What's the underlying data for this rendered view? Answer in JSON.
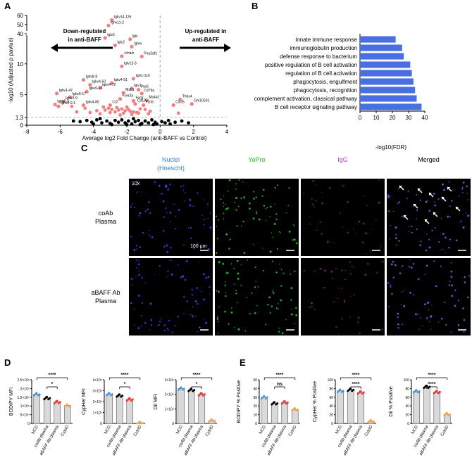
{
  "panels": {
    "a": "A",
    "b": "B",
    "c": "C",
    "d": "D",
    "e": "E"
  },
  "colors": {
    "sig": "#f08080",
    "nonsig": "#000000",
    "bar_b": "#4a6fe3",
    "dashed": "#8ec5e6",
    "ncd": "#4a90d9",
    "coab": "#000000",
    "abaff": "#e83b3b",
    "cytod": "#f5a14a",
    "bar_fill": "#d9d9d9"
  },
  "chart_data": [
    {
      "type": "scatter",
      "panel": "A",
      "xlabel": "Average log2 Fold Change (anti-BAFF vs Control)",
      "ylabel": "-log10 (Adjusted p pavlue)",
      "xlim": [
        -8,
        4
      ],
      "xticks": [
        "-8",
        "-6",
        "-4",
        "-2",
        "0",
        "2",
        "4"
      ],
      "yticks": [
        "0",
        "1.3",
        "5",
        "10",
        "40",
        "50",
        "60"
      ],
      "threshold_label": "1.3",
      "annotations": {
        "down": [
          "Down-regulated",
          "in anti-BAFF"
        ],
        "up": [
          "Up-regulated in",
          "anti-BAFF"
        ]
      },
      "labeled_genes": [
        {
          "name": "Igkv14-126",
          "x": -2.9,
          "y": 55
        },
        {
          "name": "Ighv11-2",
          "x": -3.1,
          "y": 49
        },
        {
          "name": "Jchain",
          "x": -2.3,
          "y": 15.5
        },
        {
          "name": "Iglv2",
          "x": -3.3,
          "y": 14.2
        },
        {
          "name": "Iglc",
          "x": -1.8,
          "y": 14.0
        },
        {
          "name": "Iglc2",
          "x": -2.7,
          "y": 13.0
        },
        {
          "name": "Ighm",
          "x": -1.7,
          "y": 12.8
        },
        {
          "name": "Pou2af1",
          "x": -1.1,
          "y": 11.2
        },
        {
          "name": "Iglv12-3",
          "x": -2.3,
          "y": 9.6
        },
        {
          "name": "Ighv8-8",
          "x": -4.6,
          "y": 7.4
        },
        {
          "name": "Iglv1-110",
          "x": -1.6,
          "y": 7.6
        },
        {
          "name": "Igkv4-50",
          "x": -4.2,
          "y": 6.6
        },
        {
          "name": "Igkv4-91",
          "x": -2.9,
          "y": 6.9
        },
        {
          "name": "Igkv4-72",
          "x": -3.6,
          "y": 6.1
        },
        {
          "name": "Iglv1",
          "x": -1.7,
          "y": 6.0
        },
        {
          "name": "Ighv1-47",
          "x": -6.2,
          "y": 5.2
        },
        {
          "name": "Igkv6-23",
          "x": -4.4,
          "y": 5.5
        },
        {
          "name": "Mzb1",
          "x": -2.2,
          "y": 5.3
        },
        {
          "name": "Pax5",
          "x": -1.3,
          "y": 5.8
        },
        {
          "name": "Cd79a",
          "x": -1.1,
          "y": 5.2
        },
        {
          "name": "Ighv5-17",
          "x": -5.4,
          "y": 4.6
        },
        {
          "name": "Fcer2a",
          "x": -2.4,
          "y": 4.3
        },
        {
          "name": "Fcmr",
          "x": -1.6,
          "y": 4.0
        },
        {
          "name": "Ms4a1",
          "x": -0.8,
          "y": 4.1
        },
        {
          "name": "Thbs4",
          "x": 1.2,
          "y": 4.2
        },
        {
          "name": "Ighv2-9",
          "x": -5.8,
          "y": 3.9
        },
        {
          "name": "Cd19",
          "x": -1.5,
          "y": 3.5
        },
        {
          "name": "Fcrla",
          "x": -1.0,
          "y": 3.3
        },
        {
          "name": "Ighv2-3",
          "x": -6.3,
          "y": 3.4
        },
        {
          "name": "Igkv4-80",
          "x": -4.6,
          "y": 3.3
        },
        {
          "name": "Cr2",
          "x": -3.0,
          "y": 3.3
        },
        {
          "name": "Cxcl5",
          "x": 0.8,
          "y": 3.3
        },
        {
          "name": "Gm10591",
          "x": 1.9,
          "y": 3.5
        },
        {
          "name": "Ighv5-9-1",
          "x": -6.1,
          "y": 3.1
        }
      ],
      "unlabeled_sig": [
        [
          -3.4,
          3.0
        ],
        [
          -3.1,
          2.8
        ],
        [
          -2.9,
          2.6
        ],
        [
          -2.6,
          2.9
        ],
        [
          -2.5,
          2.5
        ],
        [
          -2.3,
          2.7
        ],
        [
          -2.1,
          2.4
        ],
        [
          -1.9,
          2.6
        ],
        [
          -1.8,
          2.3
        ],
        [
          -1.6,
          2.2
        ],
        [
          -1.4,
          2.1
        ],
        [
          -1.3,
          2.0
        ],
        [
          -3.8,
          2.4
        ],
        [
          -4.2,
          2.1
        ],
        [
          -4.5,
          2.8
        ],
        [
          -5.0,
          2.2
        ],
        [
          -5.3,
          3.1
        ],
        [
          -2.7,
          2.2
        ],
        [
          -2.2,
          2.0
        ],
        [
          -3.0,
          2.1
        ],
        [
          -3.6,
          1.9
        ],
        [
          -1.7,
          1.8
        ],
        [
          -2.4,
          1.7
        ],
        [
          -0.6,
          2.3
        ],
        [
          -0.7,
          1.9
        ],
        [
          1.1,
          2.0
        ],
        [
          -3.3,
          2.5
        ],
        [
          -1.2,
          2.7
        ],
        [
          -2.0,
          3.0
        ],
        [
          -0.9,
          2.6
        ]
      ],
      "nonsig": [
        [
          -5.2,
          0.7
        ],
        [
          -4.8,
          0.6
        ],
        [
          -4.4,
          0.8
        ],
        [
          -4.1,
          0.5
        ],
        [
          -3.8,
          0.9
        ],
        [
          -3.5,
          0.4
        ],
        [
          -3.2,
          0.7
        ],
        [
          -3.0,
          0.3
        ],
        [
          -2.7,
          0.8
        ],
        [
          -2.5,
          0.5
        ],
        [
          -2.3,
          0.9
        ],
        [
          -2.1,
          0.4
        ],
        [
          -1.9,
          0.7
        ],
        [
          -1.7,
          0.2
        ],
        [
          -1.5,
          0.6
        ],
        [
          -1.3,
          0.8
        ],
        [
          -1.1,
          0.3
        ],
        [
          -0.9,
          0.7
        ],
        [
          -0.7,
          0.4
        ],
        [
          -0.5,
          0.9
        ],
        [
          -0.3,
          0.5
        ],
        [
          -0.2,
          0.2
        ],
        [
          0.1,
          0.6
        ],
        [
          0.3,
          0.4
        ],
        [
          0.5,
          0.8
        ],
        [
          0.9,
          0.5
        ],
        [
          1.3,
          0.7
        ],
        [
          1.7,
          0.4
        ],
        [
          -4.0,
          0.2
        ],
        [
          -2.9,
          0.1
        ],
        [
          -2.0,
          0.1
        ],
        [
          -1.2,
          0.1
        ],
        [
          -0.4,
          0.1
        ],
        [
          0.6,
          0.2
        ],
        [
          -3.6,
          1.1
        ],
        [
          -1.6,
          1.1
        ]
      ]
    },
    {
      "type": "bar",
      "panel": "B",
      "orientation": "horizontal",
      "categories": [
        "innate immune response",
        "immunoglobulin production",
        "defense response to bacterium",
        "positive regulation of B cell activation",
        "regulation of B cell activation",
        "phagocytosis, engulfment",
        "phagocytosis, recognition",
        "complement activation, classical pathway",
        "B cell receptor signaling pathway"
      ],
      "values": [
        22,
        26,
        27,
        31,
        32,
        33,
        34,
        35,
        38
      ],
      "xlabel": "-log10(FDR)",
      "xlim": [
        0,
        40
      ],
      "xticks": [
        "0",
        "10",
        "20",
        "30",
        "40"
      ]
    },
    {
      "type": "bar",
      "panel": "D",
      "groups": [
        "NCD",
        "coAb plasma",
        "aBAFF Ab plasma",
        "CytoD"
      ],
      "subplots": [
        {
          "ylabel": "BODIPY MFI",
          "values": [
            1.68,
            1.45,
            1.22,
            1.02
          ],
          "ylim": [
            0,
            2.5
          ],
          "yticks": [
            "0",
            "5×10⁴",
            "1×10⁵",
            "1.5×10⁵",
            "2×10⁵",
            "2.5×10⁵"
          ],
          "sig": [
            {
              "from": 0,
              "to": 3,
              "label": "****"
            },
            {
              "from": 1,
              "to": 2,
              "label": "*"
            }
          ]
        },
        {
          "ylabel": "CypHer MFI",
          "values": [
            2.7,
            2.55,
            2.2,
            0.05
          ],
          "ylim": [
            0,
            4
          ],
          "yticks": [
            "0",
            "1×10⁵",
            "2×10⁵",
            "3×10⁵",
            "4×10⁵"
          ],
          "sig": [
            {
              "from": 0,
              "to": 3,
              "label": "****"
            },
            {
              "from": 1,
              "to": 2,
              "label": "*"
            }
          ]
        },
        {
          "ylabel": "DiI MFI",
          "values": [
            2.4,
            2.3,
            2.0,
            0.2
          ],
          "ylim": [
            0,
            3
          ],
          "yticks": [
            "0",
            "1×10⁵",
            "2×10⁵",
            "3×10⁵"
          ],
          "sig": [
            {
              "from": 0,
              "to": 3,
              "label": "****"
            },
            {
              "from": 1,
              "to": 2,
              "label": "*"
            }
          ]
        }
      ]
    },
    {
      "type": "bar",
      "panel": "E",
      "groups": [
        "NCD",
        "coAb plasma",
        "aBAFF Ab plasma",
        "CytoD"
      ],
      "subplots": [
        {
          "ylabel": "BODIPY % Positive",
          "values": [
            30,
            23,
            24,
            16
          ],
          "ylim": [
            0,
            50
          ],
          "yticks": [
            "0",
            "10",
            "20",
            "30",
            "40",
            "50"
          ],
          "sig": [
            {
              "from": 0,
              "to": 3,
              "label": "****"
            },
            {
              "from": 1,
              "to": 2,
              "label": "ns"
            }
          ]
        },
        {
          "ylabel": "CypHer % Positive",
          "values": [
            75,
            77,
            71,
            5
          ],
          "ylim": [
            0,
            100
          ],
          "yticks": [
            "0",
            "20",
            "40",
            "60",
            "80",
            "100"
          ],
          "sig": [
            {
              "from": 0,
              "to": 3,
              "label": "****"
            },
            {
              "from": 1,
              "to": 2,
              "label": "****"
            }
          ]
        },
        {
          "ylabel": "DiI % Positive",
          "values": [
            74,
            84,
            72,
            21
          ],
          "ylim": [
            0,
            100
          ],
          "yticks": [
            "0",
            "20",
            "40",
            "60",
            "80",
            "100"
          ],
          "sig": [
            {
              "from": 0,
              "to": 3,
              "label": "****"
            },
            {
              "from": 1,
              "to": 2,
              "label": "****"
            }
          ]
        }
      ]
    }
  ],
  "microscopy": {
    "columns": [
      "Nuclei\n(Hoescht)",
      "YoPro",
      "IgG",
      "Merged"
    ],
    "column_line1": [
      "Nuclei",
      "YoPro",
      "IgG",
      "Merged"
    ],
    "column_line2": [
      "(Hoescht)",
      "",
      "",
      ""
    ],
    "column_colors": [
      "#2f86d6",
      "#27b427",
      "#c23cc2",
      "#000000"
    ],
    "rows": [
      [
        "coAb",
        "Plasma"
      ],
      [
        "aBAFF Ab",
        "Plasma"
      ]
    ],
    "magnification": "10x",
    "scale_label": "100 μm"
  }
}
